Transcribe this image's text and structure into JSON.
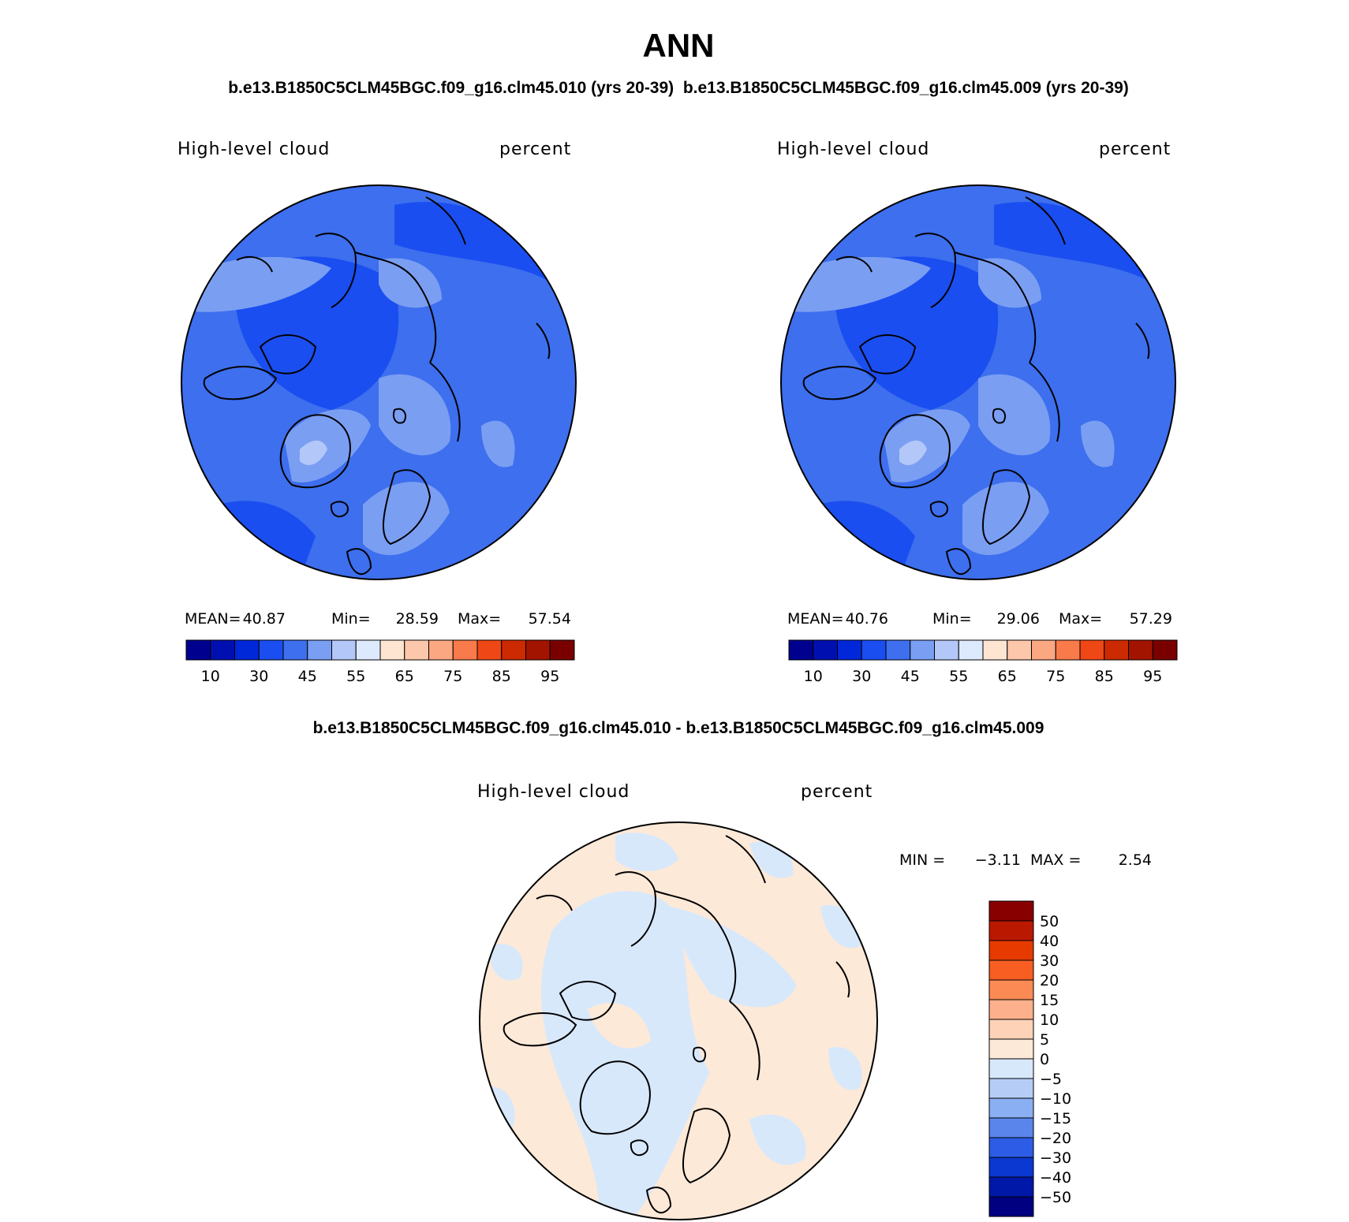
{
  "page": {
    "title": "ANN",
    "case_header": "b.e13.B1850C5CLM45BGC.f09_g16.clm45.010 (yrs 20-39)  b.e13.B1850C5CLM45BGC.f09_g16.clm45.009 (yrs 20-39)",
    "diff_header": "b.e13.B1850C5CLM45BGC.f09_g16.clm45.010 - b.e13.B1850C5CLM45BGC.f09_g16.clm45.009"
  },
  "chart_data": [
    {
      "type": "heatmap",
      "projection": "north-polar-stereographic",
      "variable": "High-level cloud",
      "units": "percent",
      "stats": {
        "mean_label": "MEAN=",
        "mean": "40.87",
        "min_label": "Min=",
        "min": "28.59",
        "max_label": "Max=",
        "max": "57.54"
      },
      "colorbar": {
        "orientation": "horizontal",
        "levels": [
          "10",
          "30",
          "45",
          "55",
          "65",
          "75",
          "85",
          "95"
        ],
        "colors": [
          "#00008f",
          "#0010b0",
          "#0028d8",
          "#1a4ef0",
          "#3d6fee",
          "#7a9ef2",
          "#b3c8f8",
          "#dde9fc",
          "#fde5d2",
          "#fcc7aa",
          "#fba781",
          "#f97a4a",
          "#ef4816",
          "#cc2a00",
          "#a31400",
          "#7a0000"
        ]
      }
    },
    {
      "type": "heatmap",
      "projection": "north-polar-stereographic",
      "variable": "High-level cloud",
      "units": "percent",
      "stats": {
        "mean_label": "MEAN=",
        "mean": "40.76",
        "min_label": "Min=",
        "min": "29.06",
        "max_label": "Max=",
        "max": "57.29"
      },
      "colorbar": {
        "orientation": "horizontal",
        "levels": [
          "10",
          "30",
          "45",
          "55",
          "65",
          "75",
          "85",
          "95"
        ],
        "colors": [
          "#00008f",
          "#0010b0",
          "#0028d8",
          "#1a4ef0",
          "#3d6fee",
          "#7a9ef2",
          "#b3c8f8",
          "#dde9fc",
          "#fde5d2",
          "#fcc7aa",
          "#fba781",
          "#f97a4a",
          "#ef4816",
          "#cc2a00",
          "#a31400",
          "#7a0000"
        ]
      }
    },
    {
      "type": "heatmap",
      "projection": "north-polar-stereographic",
      "variable": "High-level cloud",
      "units": "percent",
      "stats": {
        "min_label": "MIN =",
        "min": "−3.11",
        "max_label": "MAX =",
        "max": "2.54"
      },
      "colorbar": {
        "orientation": "vertical",
        "levels": [
          "50",
          "40",
          "30",
          "20",
          "15",
          "10",
          "5",
          "0",
          "−5",
          "−10",
          "−15",
          "−20",
          "−30",
          "−40",
          "−50"
        ],
        "colors": [
          "#880000",
          "#bb1800",
          "#e63a00",
          "#f85e22",
          "#fb8a55",
          "#fdb08c",
          "#fdd2b7",
          "#fde9d8",
          "#d8e8fb",
          "#b5cdf6",
          "#8aaff2",
          "#5a86ec",
          "#2d5de6",
          "#0a38d0",
          "#0018a8",
          "#000080"
        ]
      }
    }
  ]
}
